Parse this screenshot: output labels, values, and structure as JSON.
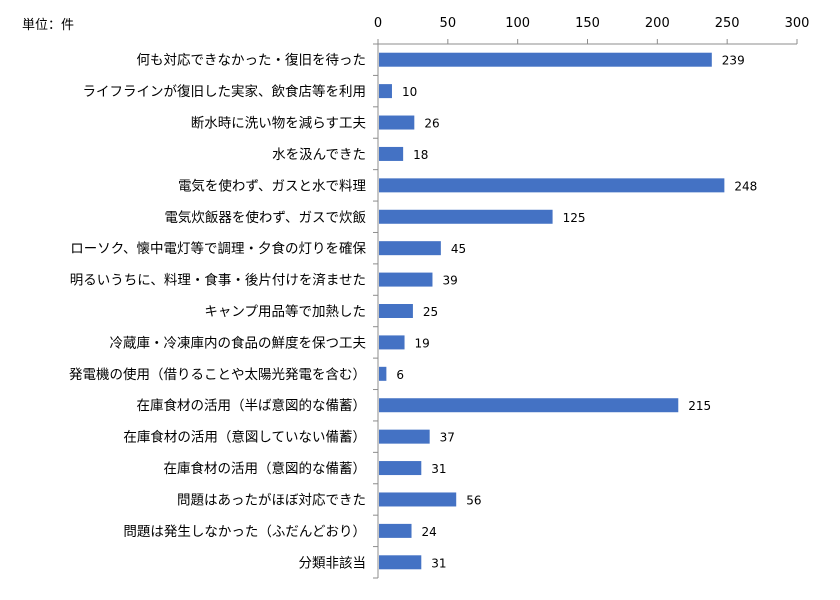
{
  "chart_data": {
    "type": "bar",
    "orientation": "horizontal",
    "unit_label": "単位：件",
    "categories": [
      "何も対応できなかった・復旧を待った",
      "ライフラインが復旧した実家、飲食店等を利用",
      "断水時に洗い物を減らす工夫",
      "水を汲んできた",
      "電気を使わず、ガスと水で料理",
      "電気炊飯器を使わず、ガスで炊飯",
      "ローソク、懐中電灯等で調理・夕食の灯りを確保",
      "明るいうちに、料理・食事・後片付けを済ませた",
      "キャンプ用品等で加熱した",
      "冷蔵庫・冷凍庫内の食品の鮮度を保つ工夫",
      "発電機の使用（借りることや太陽光発電を含む）",
      "在庫食材の活用（半ば意図的な備蓄）",
      "在庫食材の活用（意図していない備蓄）",
      "在庫食材の活用（意図的な備蓄）",
      "問題はあったがほぼ対応できた",
      "問題は発生しなかった（ふだんどおり）",
      "分類非該当"
    ],
    "values": [
      239,
      10,
      26,
      18,
      248,
      125,
      45,
      39,
      25,
      19,
      6,
      215,
      37,
      31,
      56,
      24,
      31
    ],
    "xlim": [
      0,
      300
    ],
    "xticks": [
      0,
      50,
      100,
      150,
      200,
      250,
      300
    ],
    "axis_position": "top",
    "grid": false,
    "legend": "none",
    "data_labels": true,
    "bar_color": "#4472C4"
  }
}
